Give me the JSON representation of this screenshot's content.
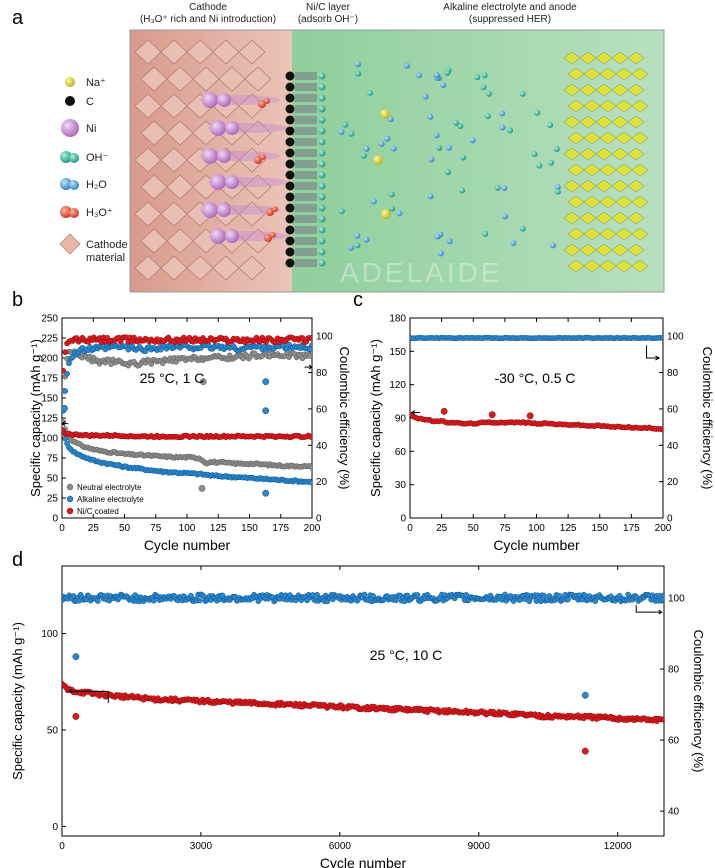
{
  "colors": {
    "neutral": "#8c8c8c",
    "alkaline": "#2f86c8",
    "nic": "#d11e25",
    "bg_pink": "#e9b3a5",
    "bg_green": "#a7d6b0",
    "yellow": "#e6e03a"
  },
  "panel_a": {
    "letter": "a",
    "headers": {
      "cathode_line1": "Cathode",
      "cathode_line2": "(H₃O⁺ rich and Ni introduction)",
      "layer_line1": "Ni/C layer",
      "layer_line2": "(adsorb OH⁻)",
      "alkaline_line1": "Alkaline electrolyte and anode",
      "alkaline_line2": "(suppressed HER)"
    },
    "legend": [
      {
        "label": "Na⁺",
        "icon": "na-ion-icon",
        "color": "#dfe13a",
        "size": 5
      },
      {
        "label": "C",
        "icon": "carbon-atom-icon",
        "color": "#111111",
        "size": 5
      },
      {
        "label": "Ni",
        "icon": "nickel-atom-icon",
        "color": "#c48ad0",
        "size": 9
      },
      {
        "label": "OH⁻",
        "icon": "hydroxide-icon",
        "color": "#2fb6a0",
        "size": 8
      },
      {
        "label": "H₂O",
        "icon": "water-molecule-icon",
        "color": "#4aa3e0",
        "size": 8
      },
      {
        "label": "H₃O⁺",
        "icon": "hydronium-icon",
        "color": "#e0502a",
        "size": 8
      },
      {
        "label": "Cathode",
        "label2": "material",
        "icon": "cathode-material-icon",
        "color": "#e7b8aa",
        "size": 10
      }
    ],
    "watermark": "ADELAIDE"
  },
  "chart_data": [
    {
      "panel": "b",
      "type": "scatter",
      "xlabel": "Cycle number",
      "ylabel": "Specific capacity (mAh g⁻¹)",
      "y2label": "Coulombic efficiency (%)",
      "xlim": [
        0,
        200
      ],
      "ylim": [
        0,
        250
      ],
      "y2lim": [
        0,
        110
      ],
      "xticks": [
        0,
        25,
        50,
        75,
        100,
        125,
        150,
        175,
        200
      ],
      "yticks": [
        0,
        25,
        50,
        75,
        100,
        125,
        150,
        175,
        200,
        225,
        250
      ],
      "y2ticks": [
        0,
        20,
        40,
        60,
        80,
        100
      ],
      "annotation": "25 °C, 1 C",
      "legend_position": "bottom-left",
      "series": [
        {
          "name": "Neutral electrolyte",
          "color_key": "neutral",
          "axis": "left",
          "x": [
            1,
            3,
            6,
            10,
            15,
            20,
            25,
            30,
            40,
            50,
            60,
            70,
            80,
            90,
            100,
            110,
            115,
            120,
            130,
            140,
            150,
            160,
            170,
            180,
            190,
            200
          ],
          "y": [
            120,
            108,
            100,
            95,
            91,
            88,
            86,
            84,
            82,
            80,
            79,
            78,
            77,
            76,
            76,
            75,
            69,
            70,
            69,
            68,
            68,
            67,
            66,
            65,
            65,
            64
          ]
        },
        {
          "name": "Alkaline electrolyte",
          "color_key": "alkaline",
          "axis": "left",
          "x": [
            1,
            3,
            6,
            10,
            15,
            20,
            25,
            30,
            40,
            50,
            60,
            70,
            80,
            90,
            100,
            110,
            120,
            130,
            140,
            150,
            160,
            170,
            180,
            190,
            200
          ],
          "y": [
            110,
            95,
            88,
            82,
            78,
            75,
            72,
            70,
            67,
            64,
            62,
            60,
            58,
            57,
            56,
            55,
            53,
            52,
            51,
            50,
            49,
            48,
            47,
            46,
            45
          ]
        },
        {
          "name": "Ni/C coated",
          "color_key": "nic",
          "axis": "left",
          "x": [
            1,
            3,
            6,
            10,
            15,
            20,
            30,
            40,
            50,
            60,
            70,
            80,
            90,
            100,
            110,
            120,
            130,
            140,
            150,
            160,
            170,
            180,
            190,
            200
          ],
          "y": [
            108,
            106,
            105,
            104,
            104,
            103,
            103,
            103,
            103,
            102,
            102,
            102,
            102,
            102,
            102,
            102,
            102,
            102,
            102,
            102,
            102,
            102,
            102,
            102
          ]
        },
        {
          "name": "Neutral electrolyte",
          "color_key": "neutral",
          "axis": "right",
          "x": [
            1,
            5,
            10,
            15,
            20,
            25,
            30,
            40,
            50,
            60,
            70,
            80,
            90,
            100,
            110,
            120,
            130,
            140,
            150,
            160,
            170,
            180,
            190,
            200
          ],
          "y": [
            70,
            92,
            91,
            90,
            88,
            87,
            86,
            86,
            85,
            85,
            86,
            86,
            87,
            87,
            88,
            88,
            88,
            89,
            89,
            90,
            90,
            90,
            89,
            90
          ]
        },
        {
          "name": "Alkaline electrolyte",
          "color_key": "alkaline",
          "axis": "right",
          "x": [
            1,
            5,
            10,
            15,
            20,
            25,
            30,
            40,
            50,
            60,
            70,
            80,
            90,
            100,
            110,
            120,
            130,
            140,
            150,
            160,
            170,
            180,
            190,
            200
          ],
          "y": [
            60,
            86,
            90,
            92,
            93,
            93,
            93,
            94,
            94,
            93,
            93,
            94,
            94,
            94,
            94,
            94,
            94,
            93,
            94,
            94,
            94,
            94,
            94,
            94
          ]
        },
        {
          "name": "Ni/C coated",
          "color_key": "nic",
          "axis": "right",
          "x": [
            1,
            3,
            6,
            10,
            20,
            30,
            40,
            50,
            60,
            70,
            80,
            90,
            100,
            110,
            120,
            130,
            140,
            150,
            160,
            170,
            180,
            190,
            200
          ],
          "y": [
            80,
            94,
            97,
            98,
            98,
            98,
            98,
            98,
            98,
            98,
            98,
            98,
            98,
            98,
            98,
            98,
            98,
            98,
            98,
            98,
            98,
            98,
            98
          ]
        }
      ],
      "outliers": [
        {
          "color_key": "neutral",
          "axis": "right",
          "x": 113,
          "y": 75
        },
        {
          "color_key": "alkaline",
          "axis": "right",
          "x": 163,
          "y": 75
        },
        {
          "color_key": "alkaline",
          "axis": "right",
          "x": 163,
          "y": 59
        },
        {
          "color_key": "neutral",
          "axis": "left",
          "x": 112,
          "y": 37
        },
        {
          "color_key": "alkaline",
          "axis": "left",
          "x": 163,
          "y": 31
        },
        {
          "color_key": "alkaline",
          "axis": "left",
          "x": 2,
          "y": 137
        }
      ],
      "legend": [
        "Neutral electrolyte",
        "Alkaline electrolyte",
        "Ni/C coated"
      ]
    },
    {
      "panel": "c",
      "type": "scatter",
      "xlabel": "Cycle number",
      "ylabel": "Specific capacity (mAh g⁻¹)",
      "y2label": "Coulombic efficiency (%)",
      "xlim": [
        0,
        200
      ],
      "ylim": [
        0,
        180
      ],
      "y2lim": [
        0,
        110
      ],
      "xticks": [
        0,
        25,
        50,
        75,
        100,
        125,
        150,
        175,
        200
      ],
      "yticks": [
        0,
        30,
        60,
        90,
        120,
        150,
        180
      ],
      "y2ticks": [
        0,
        20,
        40,
        60,
        80,
        100
      ],
      "annotation": "-30 °C, 0.5 C",
      "series": [
        {
          "name": "Capacity",
          "color_key": "nic",
          "axis": "left",
          "x": [
            1,
            5,
            10,
            15,
            20,
            25,
            30,
            35,
            40,
            45,
            50,
            60,
            70,
            80,
            90,
            100,
            110,
            120,
            130,
            140,
            150,
            160,
            170,
            180,
            190,
            200
          ],
          "y": [
            93,
            90,
            89,
            88,
            87,
            87,
            86,
            86,
            85,
            85,
            85,
            86,
            86,
            86,
            86,
            85,
            85,
            84,
            84,
            83,
            83,
            82,
            82,
            81,
            81,
            80
          ]
        },
        {
          "name": "Coulombic efficiency",
          "color_key": "alkaline",
          "axis": "right",
          "x": [
            1,
            10,
            20,
            30,
            40,
            50,
            60,
            70,
            80,
            90,
            100,
            110,
            120,
            130,
            140,
            150,
            160,
            170,
            180,
            190,
            200
          ],
          "y": [
            99,
            99,
            99,
            99,
            99,
            99,
            99,
            99,
            99,
            99,
            99,
            99,
            99,
            99,
            99,
            99,
            99,
            99,
            99,
            99,
            99
          ]
        }
      ],
      "outliers": [
        {
          "color_key": "nic",
          "axis": "left",
          "x": 27,
          "y": 96
        },
        {
          "color_key": "nic",
          "axis": "left",
          "x": 65,
          "y": 93
        },
        {
          "color_key": "nic",
          "axis": "left",
          "x": 95,
          "y": 92
        }
      ]
    },
    {
      "panel": "d",
      "type": "scatter",
      "xlabel": "Cycle number",
      "ylabel": "Specific capacity (mAh g⁻¹)",
      "y2label": "Coulombic efficiency (%)",
      "xlim": [
        0,
        13000
      ],
      "ylim": [
        -5,
        135
      ],
      "y2lim": [
        33,
        109
      ],
      "xticks": [
        0,
        3000,
        6000,
        9000,
        12000
      ],
      "yticks": [
        0,
        50,
        100
      ],
      "y2ticks": [
        40,
        60,
        80,
        100
      ],
      "annotation": "25 °C, 10 C",
      "series": [
        {
          "name": "Capacity",
          "color_key": "nic",
          "axis": "left",
          "x": [
            0,
            100,
            300,
            600,
            1000,
            1500,
            2000,
            3000,
            4000,
            5000,
            6000,
            7000,
            8000,
            9000,
            10000,
            10500,
            11000,
            12000,
            13000
          ],
          "y": [
            74,
            71,
            70,
            69,
            68,
            67,
            66,
            65,
            64,
            63,
            62,
            61,
            60,
            59,
            58,
            57,
            57,
            56,
            55
          ]
        },
        {
          "name": "Coulombic efficiency",
          "color_key": "alkaline",
          "axis": "right",
          "x": [
            0,
            500,
            1000,
            2000,
            3000,
            4000,
            5000,
            6000,
            7000,
            8000,
            9000,
            10000,
            11000,
            12000,
            13000
          ],
          "y": [
            100,
            100,
            100,
            100,
            100,
            100,
            100,
            100,
            100,
            100,
            100,
            100,
            100,
            100,
            100
          ]
        }
      ],
      "outliers": [
        {
          "color_key": "alkaline",
          "axis": "left",
          "x": 300,
          "y": 88
        },
        {
          "color_key": "nic",
          "axis": "left",
          "x": 300,
          "y": 57
        },
        {
          "color_key": "alkaline",
          "axis": "left",
          "x": 11300,
          "y": 68
        },
        {
          "color_key": "nic",
          "axis": "left",
          "x": 11300,
          "y": 39
        }
      ]
    }
  ]
}
